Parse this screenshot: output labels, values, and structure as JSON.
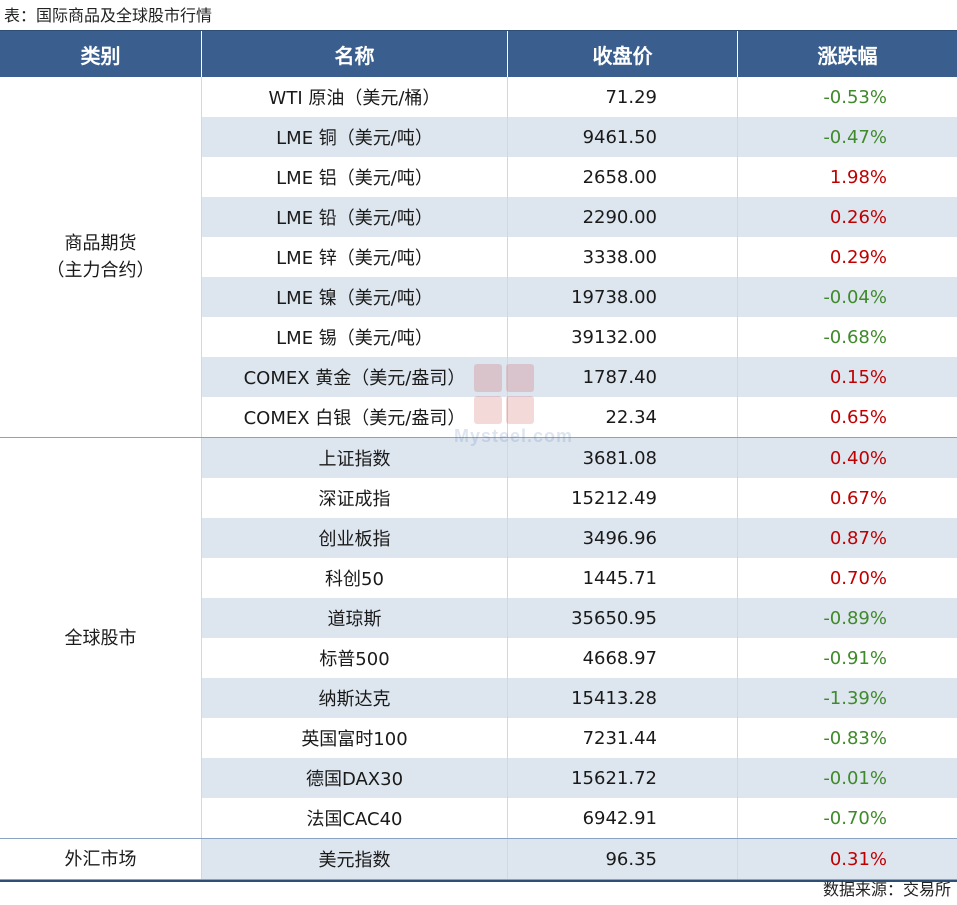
{
  "caption": "表：国际商品及全球股市行情",
  "headers": {
    "category": "类别",
    "name": "名称",
    "close": "收盘价",
    "change": "涨跌幅"
  },
  "groups": [
    {
      "label": "商品期货\n（主力合约）",
      "rows": [
        {
          "name": "WTI 原油（美元/桶）",
          "close": "71.29",
          "change": "-0.53%",
          "direction": "down"
        },
        {
          "name": "LME 铜（美元/吨）",
          "close": "9461.50",
          "change": "-0.47%",
          "direction": "down"
        },
        {
          "name": "LME 铝（美元/吨）",
          "close": "2658.00",
          "change": "1.98%",
          "direction": "up"
        },
        {
          "name": "LME 铅（美元/吨）",
          "close": "2290.00",
          "change": "0.26%",
          "direction": "up"
        },
        {
          "name": "LME 锌（美元/吨）",
          "close": "3338.00",
          "change": "0.29%",
          "direction": "up"
        },
        {
          "name": "LME 镍（美元/吨）",
          "close": "19738.00",
          "change": "-0.04%",
          "direction": "down"
        },
        {
          "name": "LME 锡（美元/吨）",
          "close": "39132.00",
          "change": "-0.68%",
          "direction": "down"
        },
        {
          "name": "COMEX 黄金（美元/盎司）",
          "close": "1787.40",
          "change": "0.15%",
          "direction": "up"
        },
        {
          "name": "COMEX 白银（美元/盎司）",
          "close": "22.34",
          "change": "0.65%",
          "direction": "up"
        }
      ]
    },
    {
      "label": "全球股市",
      "rows": [
        {
          "name": "上证指数",
          "close": "3681.08",
          "change": "0.40%",
          "direction": "up"
        },
        {
          "name": "深证成指",
          "close": "15212.49",
          "change": "0.67%",
          "direction": "up"
        },
        {
          "name": "创业板指",
          "close": "3496.96",
          "change": "0.87%",
          "direction": "up"
        },
        {
          "name": "科创50",
          "close": "1445.71",
          "change": "0.70%",
          "direction": "up"
        },
        {
          "name": "道琼斯",
          "close": "35650.95",
          "change": "-0.89%",
          "direction": "down"
        },
        {
          "name": "标普500",
          "close": "4668.97",
          "change": "-0.91%",
          "direction": "down"
        },
        {
          "name": "纳斯达克",
          "close": "15413.28",
          "change": "-1.39%",
          "direction": "down"
        },
        {
          "name": "英国富时100",
          "close": "7231.44",
          "change": "-0.83%",
          "direction": "down"
        },
        {
          "name": "德国DAX30",
          "close": "15621.72",
          "change": "-0.01%",
          "direction": "down"
        },
        {
          "name": "法国CAC40",
          "close": "6942.91",
          "change": "-0.70%",
          "direction": "down"
        }
      ]
    },
    {
      "label": "外汇市场",
      "rows": [
        {
          "name": "美元指数",
          "close": "96.35",
          "change": "0.31%",
          "direction": "up"
        }
      ]
    }
  ],
  "colors": {
    "header_bg": "#3a5f8f",
    "row_alt_bg": "#dde5ef",
    "up": "#c00000",
    "down": "#3f8a2a"
  },
  "watermark": {
    "logo_chars": [
      "我",
      "的",
      "钢",
      "铁"
    ],
    "text": "Mysteel.com"
  },
  "source": "数据来源：交易所"
}
